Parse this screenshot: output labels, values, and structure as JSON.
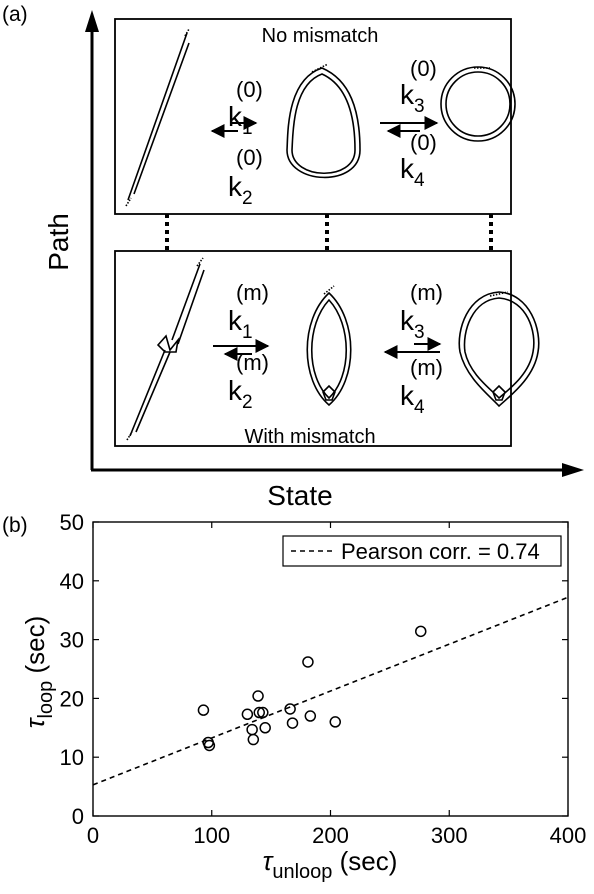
{
  "panel_a": {
    "label": "(a)",
    "x_axis_label": "State",
    "y_axis_label": "Path",
    "top_box": {
      "title": "No mismatch",
      "rates": [
        {
          "k": "k",
          "sub": "1",
          "sup": "(0)"
        },
        {
          "k": "k",
          "sub": "2",
          "sup": "(0)"
        },
        {
          "k": "k",
          "sub": "3",
          "sup": "(0)"
        },
        {
          "k": "k",
          "sub": "4",
          "sup": "(0)"
        }
      ]
    },
    "bottom_box": {
      "title": "With mismatch",
      "rates": [
        {
          "k": "k",
          "sub": "1",
          "sup": "(m)"
        },
        {
          "k": "k",
          "sub": "2",
          "sup": "(m)"
        },
        {
          "k": "k",
          "sub": "3",
          "sup": "(m)"
        },
        {
          "k": "k",
          "sub": "4",
          "sup": "(m)"
        }
      ]
    }
  },
  "panel_b": {
    "label": "(b)",
    "chart_data": {
      "type": "scatter",
      "xlabel_symbol": "τ",
      "xlabel_sub": "unloop",
      "xlabel_unit": "(sec)",
      "ylabel_symbol": "τ",
      "ylabel_sub": "loop",
      "ylabel_unit": "(sec)",
      "xlim": [
        0,
        400
      ],
      "ylim": [
        0,
        50
      ],
      "xticks": [
        0,
        100,
        200,
        300,
        400
      ],
      "yticks": [
        0,
        10,
        20,
        30,
        40,
        50
      ],
      "legend": "Pearson corr. = 0.74",
      "legend_position": "top-right",
      "grid": false,
      "fit_line": {
        "x": [
          0,
          400
        ],
        "y": [
          5.3,
          37.2
        ]
      },
      "points": [
        {
          "x": 93,
          "y": 18
        },
        {
          "x": 97,
          "y": 12.5
        },
        {
          "x": 98,
          "y": 12
        },
        {
          "x": 130,
          "y": 17.3
        },
        {
          "x": 134,
          "y": 14.7
        },
        {
          "x": 135,
          "y": 13
        },
        {
          "x": 139,
          "y": 20.4
        },
        {
          "x": 140,
          "y": 17.6
        },
        {
          "x": 143,
          "y": 17.6
        },
        {
          "x": 145,
          "y": 15
        },
        {
          "x": 166,
          "y": 18.2
        },
        {
          "x": 168,
          "y": 15.8
        },
        {
          "x": 181,
          "y": 26.2
        },
        {
          "x": 183,
          "y": 17
        },
        {
          "x": 204,
          "y": 16
        },
        {
          "x": 276,
          "y": 31.4
        }
      ]
    }
  }
}
